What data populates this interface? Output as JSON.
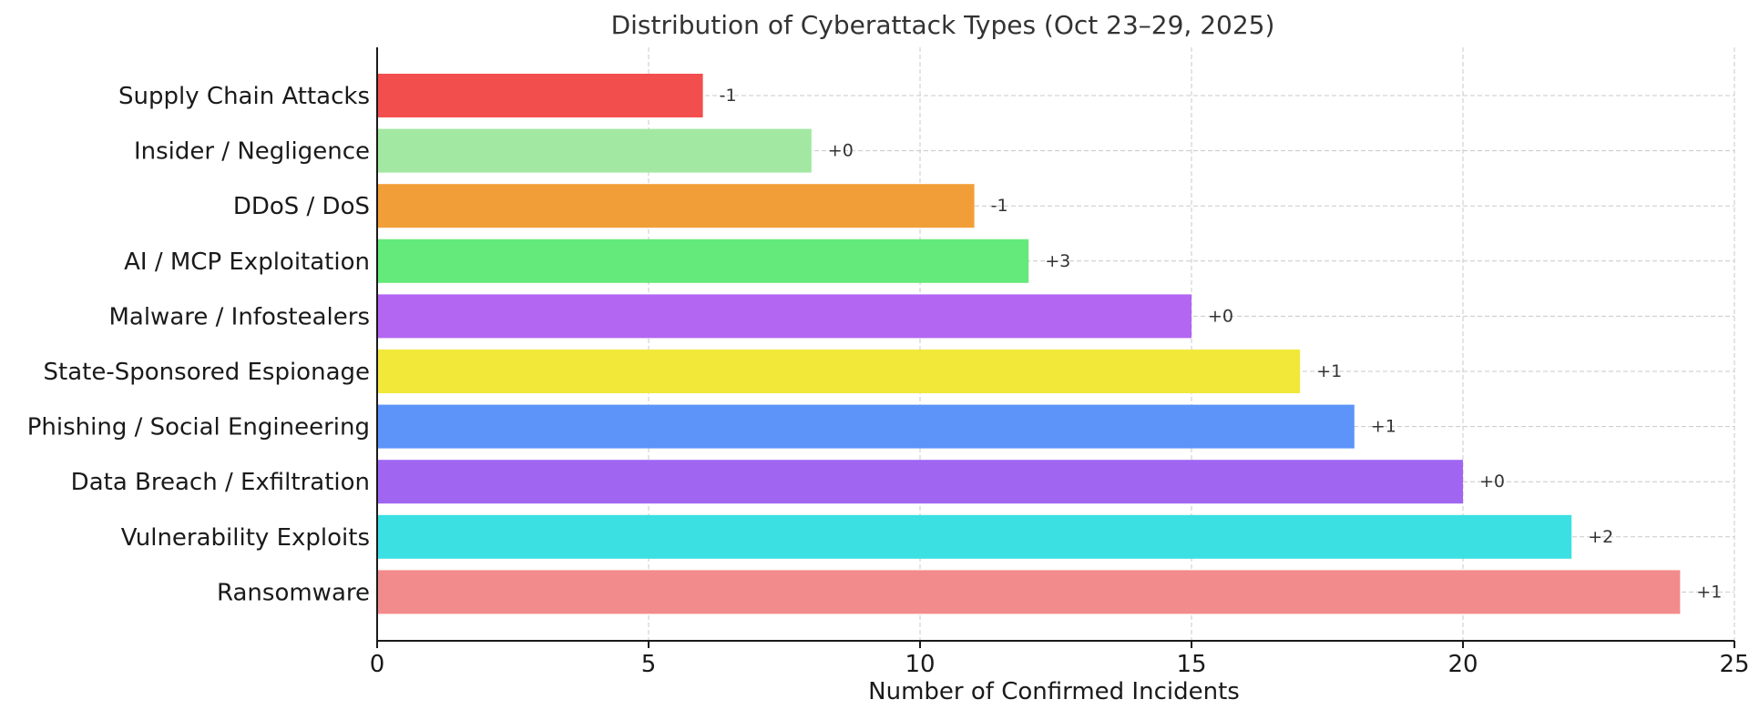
{
  "chart_data": {
    "type": "bar",
    "orientation": "horizontal",
    "title": "Distribution of Cyberattack Types (Oct 23–29, 2025)",
    "xlabel": "Number of Confirmed Incidents",
    "ylabel": "",
    "xlim": [
      0,
      25
    ],
    "xticks": [
      0,
      5,
      10,
      15,
      20,
      25
    ],
    "grid": true,
    "categories": [
      "Supply Chain Attacks",
      "Insider / Negligence",
      "DDoS / DoS",
      "AI / MCP Exploitation",
      "Malware / Infostealers",
      "State-Sponsored Espionage",
      "Phishing / Social Engineering",
      "Data Breach / Exfiltration",
      "Vulnerability Exploits",
      "Ransomware"
    ],
    "values": [
      6,
      8,
      11,
      12,
      15,
      17,
      18,
      20,
      22,
      24
    ],
    "annotations": [
      "-1",
      "+0",
      "-1",
      "+3",
      "+0",
      "+1",
      "+1",
      "+0",
      "+2",
      "+1"
    ],
    "colors": [
      "#f24e4e",
      "#a2e8a2",
      "#f29e38",
      "#63ea7a",
      "#b266f2",
      "#f2e83a",
      "#5c94f9",
      "#a066f2",
      "#3ae0e2",
      "#f28b8b"
    ]
  }
}
